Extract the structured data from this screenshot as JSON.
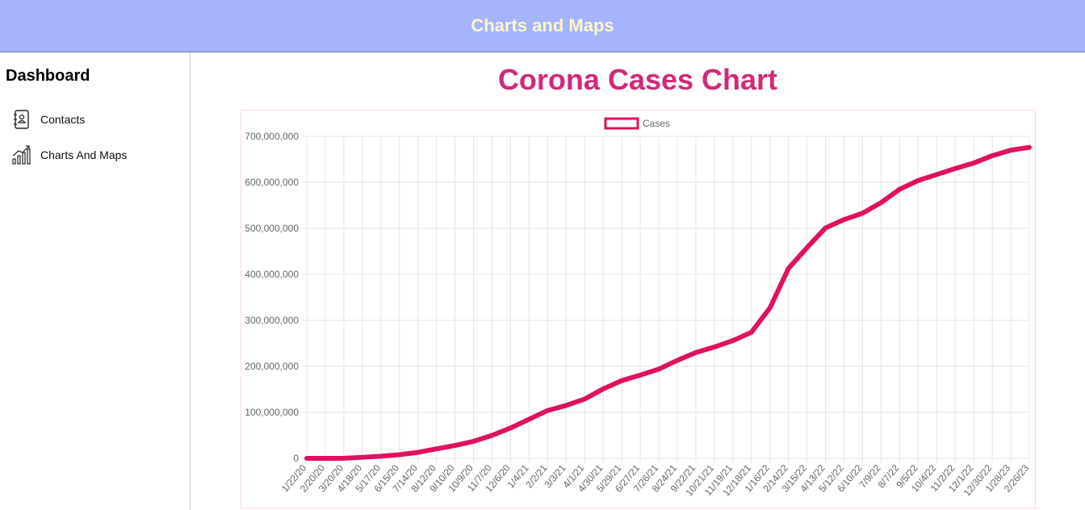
{
  "header": {
    "title": "Charts and Maps"
  },
  "sidebar": {
    "title": "Dashboard",
    "items": [
      "Contacts",
      "Charts And Maps"
    ]
  },
  "page_title": "Corona Cases Chart",
  "chart_data": {
    "type": "line",
    "categories": [
      "1/22/20",
      "2/20/20",
      "3/20/20",
      "4/18/20",
      "5/17/20",
      "6/15/20",
      "7/14/20",
      "8/12/20",
      "9/10/20",
      "10/9/20",
      "11/7/20",
      "12/6/20",
      "1/4/21",
      "2/2/21",
      "3/3/21",
      "4/1/21",
      "4/30/21",
      "5/29/21",
      "6/27/21",
      "7/26/21",
      "8/24/21",
      "9/22/21",
      "10/21/21",
      "11/19/21",
      "12/18/21",
      "1/16/22",
      "2/14/22",
      "3/15/22",
      "4/13/22",
      "5/12/22",
      "6/10/22",
      "7/9/22",
      "8/7/22",
      "9/5/22",
      "10/4/22",
      "11/2/22",
      "12/1/22",
      "12/30/22",
      "1/28/23",
      "2/26/23"
    ],
    "series": [
      {
        "name": "Cases",
        "color": "#e0115f",
        "values": [
          0,
          80000,
          270000,
          2300000,
          4700000,
          8000000,
          13000000,
          20700000,
          28000000,
          37000000,
          50000000,
          66000000,
          85000000,
          104000000,
          115000000,
          129000000,
          151000000,
          169000000,
          181000000,
          194000000,
          213000000,
          230000000,
          242000000,
          256000000,
          274000000,
          327000000,
          413000000,
          458000000,
          501000000,
          519000000,
          533000000,
          556000000,
          585000000,
          604000000,
          617000000,
          630000000,
          642000000,
          658000000,
          670000000,
          676000000
        ]
      }
    ],
    "ylim": [
      0,
      700000000
    ],
    "yticks": [
      {
        "value": 0,
        "label": "0"
      },
      {
        "value": 100000000,
        "label": "100,000,000"
      },
      {
        "value": 200000000,
        "label": "200,000,000"
      },
      {
        "value": 300000000,
        "label": "300,000,000"
      },
      {
        "value": 400000000,
        "label": "400,000,000"
      },
      {
        "value": 500000000,
        "label": "500,000,000"
      },
      {
        "value": 600000000,
        "label": "600,000,000"
      },
      {
        "value": 700000000,
        "label": "700,000,000"
      }
    ],
    "grid": true,
    "legend": "top"
  }
}
